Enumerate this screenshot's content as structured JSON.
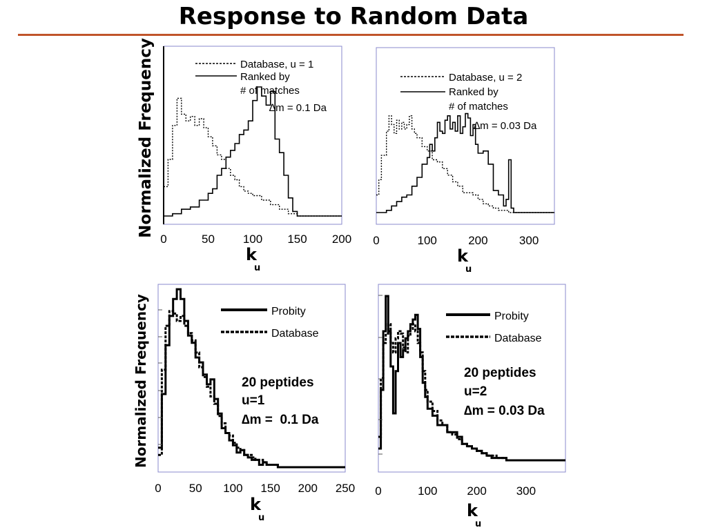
{
  "slide": {
    "title": "Response to Random Data"
  },
  "colors": {
    "title_rule": "#c0542a",
    "frame": "#8888cc",
    "ink": "#000000"
  },
  "chart_data": [
    {
      "id": "tl",
      "type": "line",
      "xlim": [
        0,
        200
      ],
      "xticks": [
        "0",
        "50",
        "100",
        "150",
        "200"
      ],
      "xlabel": "k",
      "xlabel_sub": "u",
      "ylabel": "Normalized Frequency",
      "legend": [
        "Database, u = 1",
        "Ranked by",
        "# of matches"
      ],
      "annotations": [
        "∆m = 0.1 Da"
      ],
      "series": [
        {
          "name": "Database, u = 1",
          "style": "dotted",
          "x": [
            0,
            5,
            10,
            15,
            20,
            25,
            30,
            35,
            40,
            45,
            50,
            55,
            60,
            65,
            70,
            75,
            80,
            85,
            90,
            95,
            100,
            110,
            120,
            130,
            140,
            150,
            160,
            170,
            180,
            190,
            200
          ],
          "y": [
            0.13,
            0.25,
            0.4,
            0.52,
            0.45,
            0.42,
            0.44,
            0.4,
            0.43,
            0.39,
            0.35,
            0.31,
            0.27,
            0.25,
            0.21,
            0.18,
            0.16,
            0.13,
            0.11,
            0.1,
            0.09,
            0.07,
            0.05,
            0.03,
            0.01,
            0,
            0,
            0,
            0,
            0,
            0
          ]
        },
        {
          "name": "Ranked by # of matches",
          "style": "solid",
          "x": [
            0,
            10,
            20,
            30,
            40,
            50,
            55,
            60,
            65,
            70,
            75,
            80,
            85,
            90,
            95,
            100,
            105,
            110,
            115,
            120,
            125,
            130,
            135,
            140,
            145,
            150,
            155,
            160,
            180,
            200
          ],
          "y": [
            0,
            0.01,
            0.03,
            0.04,
            0.07,
            0.1,
            0.12,
            0.18,
            0.21,
            0.26,
            0.29,
            0.32,
            0.36,
            0.38,
            0.42,
            0.51,
            0.57,
            0.53,
            0.49,
            0.55,
            0.34,
            0.28,
            0.18,
            0.08,
            0.02,
            0,
            0,
            0,
            0,
            0
          ]
        }
      ]
    },
    {
      "id": "tr",
      "type": "line",
      "xlim": [
        0,
        350
      ],
      "xticks": [
        "0",
        "100",
        "200",
        "300"
      ],
      "xlabel": "k",
      "xlabel_sub": "u",
      "legend": [
        "Database, u = 2",
        "Ranked by",
        "# of matches"
      ],
      "annotations": [
        "∆m = 0.03 Da"
      ],
      "series": [
        {
          "name": "Database, u = 2",
          "style": "dotted",
          "x": [
            0,
            5,
            10,
            20,
            25,
            30,
            35,
            40,
            45,
            50,
            55,
            60,
            65,
            70,
            75,
            80,
            90,
            100,
            110,
            120,
            130,
            140,
            150,
            160,
            170,
            180,
            190,
            200,
            210,
            220,
            230,
            240,
            260,
            280,
            300,
            350
          ],
          "y": [
            0.08,
            0.15,
            0.26,
            0.37,
            0.44,
            0.4,
            0.36,
            0.42,
            0.38,
            0.41,
            0.38,
            0.4,
            0.44,
            0.38,
            0.36,
            0.34,
            0.3,
            0.28,
            0.24,
            0.23,
            0.2,
            0.17,
            0.14,
            0.12,
            0.09,
            0.09,
            0.08,
            0.06,
            0.04,
            0.03,
            0.02,
            0.01,
            0,
            0,
            0,
            0
          ]
        },
        {
          "name": "Ranked by # of matches",
          "style": "solid",
          "x": [
            0,
            20,
            30,
            40,
            50,
            60,
            70,
            80,
            90,
            100,
            105,
            110,
            115,
            120,
            125,
            130,
            135,
            140,
            145,
            150,
            155,
            160,
            165,
            170,
            175,
            180,
            185,
            190,
            195,
            200,
            210,
            220,
            230,
            240,
            250,
            255,
            260,
            265,
            270,
            280,
            300,
            350
          ],
          "y": [
            0,
            0.01,
            0.03,
            0.05,
            0.07,
            0.08,
            0.12,
            0.16,
            0.22,
            0.25,
            0.31,
            0.28,
            0.34,
            0.41,
            0.37,
            0.36,
            0.42,
            0.44,
            0.38,
            0.41,
            0.37,
            0.44,
            0.36,
            0.39,
            0.45,
            0.43,
            0.35,
            0.4,
            0.31,
            0.27,
            0.28,
            0.22,
            0.1,
            0.08,
            0.03,
            0.06,
            0.24,
            0.02,
            0,
            0,
            0,
            0
          ]
        }
      ]
    },
    {
      "id": "bl",
      "type": "line",
      "xlim": [
        0,
        250
      ],
      "xticks": [
        "0",
        "50",
        "100",
        "150",
        "200",
        "250"
      ],
      "xlabel": "k",
      "xlabel_sub": "u",
      "ylabel": "Normalized Frequency",
      "legend": [
        "Probity",
        "Database"
      ],
      "annotations": [
        "20 peptides",
        "u=1",
        "∆m =  0.1 Da"
      ],
      "series": [
        {
          "name": "Probity",
          "style": "solid",
          "x": [
            0,
            5,
            10,
            15,
            20,
            25,
            30,
            35,
            40,
            45,
            50,
            55,
            60,
            65,
            70,
            75,
            80,
            85,
            90,
            95,
            100,
            105,
            110,
            115,
            120,
            125,
            130,
            135,
            140,
            145,
            150,
            160,
            170,
            180,
            200,
            250
          ],
          "y": [
            0.08,
            0.3,
            0.5,
            0.62,
            0.69,
            0.73,
            0.69,
            0.6,
            0.54,
            0.51,
            0.45,
            0.43,
            0.38,
            0.34,
            0.36,
            0.28,
            0.22,
            0.16,
            0.14,
            0.11,
            0.09,
            0.06,
            0.07,
            0.05,
            0.04,
            0.03,
            0.03,
            0.01,
            0.02,
            0.01,
            0.01,
            0,
            0,
            0,
            0,
            0
          ]
        },
        {
          "name": "Database",
          "style": "dashed",
          "x": [
            0,
            5,
            10,
            15,
            20,
            25,
            30,
            35,
            40,
            45,
            50,
            55,
            60,
            65,
            70,
            75,
            80,
            85,
            90,
            95,
            100,
            105,
            110,
            115,
            120,
            125,
            130,
            135,
            140,
            145,
            150,
            160,
            170,
            180,
            200,
            250
          ],
          "y": [
            0.05,
            0.4,
            0.58,
            0.64,
            0.63,
            0.6,
            0.62,
            0.58,
            0.55,
            0.52,
            0.47,
            0.41,
            0.37,
            0.33,
            0.29,
            0.26,
            0.21,
            0.18,
            0.14,
            0.13,
            0.1,
            0.08,
            0.07,
            0.05,
            0.05,
            0.04,
            0.03,
            0.03,
            0.02,
            0.01,
            0.01,
            0,
            0,
            0,
            0,
            0
          ]
        }
      ]
    },
    {
      "id": "br",
      "type": "line",
      "xlim": [
        0,
        380
      ],
      "xticks": [
        "0",
        "100",
        "200",
        "300"
      ],
      "xlabel": "k",
      "xlabel_sub": "u",
      "legend": [
        "Probity",
        "Database"
      ],
      "annotations": [
        "20 peptides",
        "u=2",
        "∆m = 0.03 Da"
      ],
      "series": [
        {
          "name": "Probity",
          "style": "solid",
          "x": [
            0,
            5,
            10,
            15,
            20,
            25,
            30,
            35,
            40,
            45,
            50,
            55,
            60,
            65,
            70,
            75,
            80,
            85,
            90,
            95,
            100,
            110,
            120,
            130,
            140,
            150,
            160,
            170,
            180,
            190,
            200,
            210,
            220,
            230,
            240,
            260,
            280,
            300,
            380
          ],
          "y": [
            0.05,
            0.3,
            0.55,
            0.7,
            0.55,
            0.4,
            0.2,
            0.38,
            0.5,
            0.44,
            0.47,
            0.52,
            0.55,
            0.58,
            0.6,
            0.62,
            0.56,
            0.44,
            0.33,
            0.27,
            0.22,
            0.19,
            0.15,
            0.15,
            0.12,
            0.12,
            0.1,
            0.07,
            0.06,
            0.05,
            0.04,
            0.03,
            0.02,
            0.01,
            0.01,
            0,
            0,
            0,
            0
          ]
        },
        {
          "name": "Database",
          "style": "dashed",
          "x": [
            0,
            5,
            10,
            15,
            20,
            25,
            30,
            35,
            40,
            45,
            50,
            55,
            60,
            65,
            70,
            75,
            80,
            85,
            90,
            95,
            100,
            110,
            120,
            130,
            140,
            150,
            160,
            170,
            180,
            190,
            200,
            210,
            220,
            230,
            240,
            260,
            280,
            300,
            380
          ],
          "y": [
            0.1,
            0.35,
            0.5,
            0.54,
            0.58,
            0.5,
            0.46,
            0.52,
            0.55,
            0.54,
            0.48,
            0.46,
            0.53,
            0.56,
            0.58,
            0.55,
            0.5,
            0.46,
            0.38,
            0.3,
            0.25,
            0.21,
            0.17,
            0.15,
            0.12,
            0.11,
            0.09,
            0.07,
            0.06,
            0.05,
            0.04,
            0.03,
            0.02,
            0.02,
            0.01,
            0,
            0,
            0,
            0
          ]
        }
      ]
    }
  ]
}
